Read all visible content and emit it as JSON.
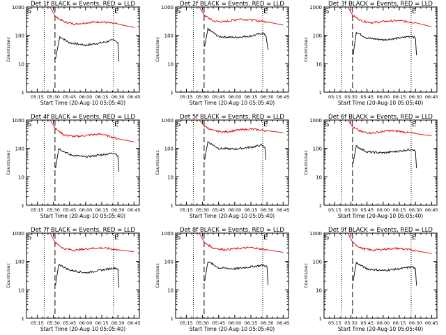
{
  "colors": {
    "events": "#000000",
    "lld": "#e00000",
    "axes": "#000000"
  },
  "chart_data": [
    {
      "type": "line",
      "detector": "1f",
      "title": "Det 1f BLACK = Events, RED = LLD",
      "xlabel": "Start Time (20-Aug-10 05:05:40)",
      "ylabel": "Counts/sec",
      "x_ticks": [
        "05:15",
        "05:30",
        "05:45",
        "06:00",
        "06:15",
        "06:30",
        "06:45"
      ],
      "y_ticks": [
        "1",
        "10",
        "100",
        "1000"
      ],
      "y_scale": "log",
      "ylim": [
        1,
        1000
      ],
      "markers": {
        "S": "S",
        "E": "E"
      },
      "series": [
        {
          "name": "Events",
          "color": "#000000",
          "x": [
            "05:32",
            "05:36",
            "05:45",
            "06:00",
            "06:15",
            "06:27",
            "06:30",
            "06:31"
          ],
          "y": [
            15,
            90,
            55,
            45,
            55,
            70,
            55,
            12
          ]
        },
        {
          "name": "LLD",
          "color": "#e00000",
          "x": [
            "05:27",
            "05:32",
            "05:40",
            "05:50",
            "06:05",
            "06:15",
            "06:30",
            "06:45"
          ],
          "y": [
            1000,
            450,
            300,
            250,
            290,
            300,
            250,
            190
          ]
        }
      ]
    },
    {
      "type": "line",
      "detector": "2f",
      "title": "Det 2f BLACK = Events, RED = LLD",
      "xlabel": "Start Time (20-Aug-10 05:05:40)",
      "ylabel": "Counts/sec",
      "x_ticks": [
        "05:15",
        "05:30",
        "05:45",
        "06:00",
        "06:15",
        "06:30",
        "06:45"
      ],
      "y_ticks": [
        "1",
        "10",
        "100",
        "1000"
      ],
      "y_scale": "log",
      "ylim": [
        1,
        1000
      ],
      "markers": {
        "S": "S",
        "E": "E"
      },
      "series": [
        {
          "name": "Events",
          "color": "#000000",
          "x": [
            "05:32",
            "05:35",
            "05:45",
            "06:00",
            "06:15",
            "06:26",
            "06:29",
            "06:31"
          ],
          "y": [
            40,
            170,
            90,
            85,
            95,
            120,
            100,
            30
          ]
        },
        {
          "name": "LLD",
          "color": "#e00000",
          "x": [
            "05:27",
            "05:32",
            "05:40",
            "05:50",
            "06:05",
            "06:15",
            "06:30",
            "06:45"
          ],
          "y": [
            1000,
            500,
            320,
            300,
            380,
            350,
            300,
            230
          ]
        }
      ]
    },
    {
      "type": "line",
      "detector": "3f",
      "title": "Det 3f BLACK = Events, RED = LLD",
      "xlabel": "Start Time (20-Aug-10 05:05:40)",
      "ylabel": "Counts/sec",
      "x_ticks": [
        "05:15",
        "05:30",
        "05:45",
        "06:00",
        "06:15",
        "06:30",
        "06:45"
      ],
      "y_ticks": [
        "1",
        "10",
        "100",
        "1000"
      ],
      "y_scale": "log",
      "ylim": [
        1,
        1000
      ],
      "markers": {
        "S": "S",
        "E": "E"
      },
      "series": [
        {
          "name": "Events",
          "color": "#000000",
          "x": [
            "05:32",
            "05:35",
            "05:45",
            "06:00",
            "06:15",
            "06:27",
            "06:30",
            "06:31"
          ],
          "y": [
            20,
            130,
            80,
            70,
            80,
            95,
            80,
            20
          ]
        },
        {
          "name": "LLD",
          "color": "#e00000",
          "x": [
            "05:27",
            "05:32",
            "05:40",
            "05:50",
            "06:05",
            "06:15",
            "06:30",
            "06:45"
          ],
          "y": [
            1000,
            500,
            320,
            280,
            320,
            330,
            280,
            200
          ]
        }
      ]
    },
    {
      "type": "line",
      "detector": "4f",
      "title": "Det 4f BLACK = Events, RED = LLD",
      "xlabel": "Start Time (20-Aug-10 05:05:40)",
      "ylabel": "Counts/sec",
      "x_ticks": [
        "05:15",
        "05:30",
        "05:45",
        "06:00",
        "06:15",
        "06:30",
        "06:45"
      ],
      "y_ticks": [
        "1",
        "10",
        "100",
        "1000"
      ],
      "y_scale": "log",
      "ylim": [
        1,
        1000
      ],
      "markers": {
        "S": "S",
        "E": "E"
      },
      "series": [
        {
          "name": "Events",
          "color": "#000000",
          "x": [
            "05:32",
            "05:35",
            "05:45",
            "06:00",
            "06:15",
            "06:27",
            "06:30",
            "06:31"
          ],
          "y": [
            20,
            100,
            60,
            50,
            60,
            70,
            55,
            15
          ]
        },
        {
          "name": "LLD",
          "color": "#e00000",
          "x": [
            "05:27",
            "05:32",
            "05:40",
            "05:50",
            "06:05",
            "06:15",
            "06:30",
            "06:45"
          ],
          "y": [
            1000,
            500,
            300,
            260,
            300,
            320,
            220,
            170
          ]
        }
      ]
    },
    {
      "type": "line",
      "detector": "5f",
      "title": "Det 5f BLACK = Events, RED = LLD",
      "xlabel": "Start Time (20-Aug-10 05:05:40)",
      "ylabel": "Counts/sec",
      "x_ticks": [
        "05:15",
        "05:30",
        "05:45",
        "06:00",
        "06:15",
        "06:30",
        "06:45"
      ],
      "y_ticks": [
        "1",
        "10",
        "100",
        "1000"
      ],
      "y_scale": "log",
      "ylim": [
        1,
        1000
      ],
      "markers": {
        "S": "S",
        "E": "E"
      },
      "series": [
        {
          "name": "Events",
          "color": "#000000",
          "x": [
            "05:32",
            "05:35",
            "05:45",
            "06:00",
            "06:15",
            "06:25",
            "06:28",
            "06:29"
          ],
          "y": [
            40,
            170,
            100,
            95,
            110,
            130,
            110,
            40
          ]
        },
        {
          "name": "LLD",
          "color": "#e00000",
          "x": [
            "05:27",
            "05:32",
            "05:40",
            "05:50",
            "06:05",
            "06:15",
            "06:30",
            "06:45"
          ],
          "y": [
            1000,
            600,
            420,
            380,
            450,
            480,
            420,
            360
          ]
        }
      ]
    },
    {
      "type": "line",
      "detector": "6f",
      "title": "Det 6f BLACK = Events, RED = LLD",
      "xlabel": "Start Time (20-Aug-10 05:05:40)",
      "ylabel": "Counts/sec",
      "x_ticks": [
        "05:15",
        "05:30",
        "05:45",
        "06:00",
        "06:15",
        "06:30",
        "06:45"
      ],
      "y_ticks": [
        "1",
        "10",
        "100",
        "1000"
      ],
      "y_scale": "log",
      "ylim": [
        1,
        1000
      ],
      "markers": {
        "S": "S",
        "E": "E"
      },
      "series": [
        {
          "name": "Events",
          "color": "#000000",
          "x": [
            "05:32",
            "05:35",
            "05:45",
            "06:00",
            "06:15",
            "06:27",
            "06:30",
            "06:31"
          ],
          "y": [
            30,
            120,
            75,
            70,
            80,
            95,
            80,
            20
          ]
        },
        {
          "name": "LLD",
          "color": "#e00000",
          "x": [
            "05:27",
            "05:32",
            "05:40",
            "05:50",
            "06:05",
            "06:15",
            "06:30",
            "06:45"
          ],
          "y": [
            1000,
            550,
            380,
            350,
            420,
            400,
            330,
            280
          ]
        }
      ]
    },
    {
      "type": "line",
      "detector": "7f",
      "title": "Det 7f BLACK = Events, RED = LLD",
      "xlabel": "Start Time (20-Aug-10 05:05:40)",
      "ylabel": "Counts/sec",
      "x_ticks": [
        "05:15",
        "05:30",
        "05:45",
        "06:00",
        "06:15",
        "06:30",
        "06:45"
      ],
      "y_ticks": [
        "1",
        "10",
        "100",
        "1000"
      ],
      "y_scale": "log",
      "ylim": [
        1,
        1000
      ],
      "markers": {
        "S": "S",
        "E": "E"
      },
      "series": [
        {
          "name": "Events",
          "color": "#000000",
          "x": [
            "05:32",
            "05:35",
            "05:45",
            "06:00",
            "06:15",
            "06:27",
            "06:30",
            "06:31"
          ],
          "y": [
            15,
            80,
            50,
            40,
            50,
            60,
            55,
            12
          ]
        },
        {
          "name": "LLD",
          "color": "#e00000",
          "x": [
            "05:27",
            "05:32",
            "05:40",
            "05:50",
            "06:05",
            "06:15",
            "06:30",
            "06:45"
          ],
          "y": [
            1000,
            450,
            280,
            250,
            290,
            300,
            260,
            220
          ]
        }
      ]
    },
    {
      "type": "line",
      "detector": "8f",
      "title": "Det 8f BLACK = Events, RED = LLD",
      "xlabel": "Start Time (20-Aug-10 05:05:40)",
      "ylabel": "Counts/sec",
      "x_ticks": [
        "05:15",
        "05:30",
        "05:45",
        "06:00",
        "06:15",
        "06:30",
        "06:45"
      ],
      "y_ticks": [
        "1",
        "10",
        "100",
        "1000"
      ],
      "y_scale": "log",
      "ylim": [
        1,
        1000
      ],
      "markers": {
        "S": "S",
        "E": "E"
      },
      "series": [
        {
          "name": "Events",
          "color": "#000000",
          "x": [
            "05:32",
            "05:35",
            "05:45",
            "06:00",
            "06:15",
            "06:27",
            "06:30",
            "06:31"
          ],
          "y": [
            20,
            100,
            60,
            55,
            65,
            75,
            65,
            15
          ]
        },
        {
          "name": "LLD",
          "color": "#e00000",
          "x": [
            "05:27",
            "05:32",
            "05:40",
            "05:50",
            "06:05",
            "06:15",
            "06:30",
            "06:45"
          ],
          "y": [
            1000,
            450,
            300,
            260,
            290,
            310,
            260,
            210
          ]
        }
      ]
    },
    {
      "type": "line",
      "detector": "9f",
      "title": "Det 9f BLACK = Events, RED = LLD",
      "xlabel": "Start Time (20-Aug-10 05:05:40)",
      "ylabel": "Counts/sec",
      "x_ticks": [
        "05:15",
        "05:30",
        "05:45",
        "06:00",
        "06:15",
        "06:30",
        "06:45"
      ],
      "y_ticks": [
        "1",
        "10",
        "100",
        "1000"
      ],
      "y_scale": "log",
      "ylim": [
        1,
        1000
      ],
      "markers": {
        "S": "S",
        "E": "E"
      },
      "series": [
        {
          "name": "Events",
          "color": "#000000",
          "x": [
            "05:32",
            "05:35",
            "05:45",
            "06:00",
            "06:15",
            "06:27",
            "06:30",
            "06:31"
          ],
          "y": [
            20,
            90,
            55,
            48,
            55,
            65,
            55,
            14
          ]
        },
        {
          "name": "LLD",
          "color": "#e00000",
          "x": [
            "05:27",
            "05:32",
            "05:40",
            "05:50",
            "06:05",
            "06:15",
            "06:30",
            "06:45"
          ],
          "y": [
            1000,
            450,
            290,
            250,
            280,
            290,
            240,
            190
          ]
        }
      ]
    }
  ]
}
